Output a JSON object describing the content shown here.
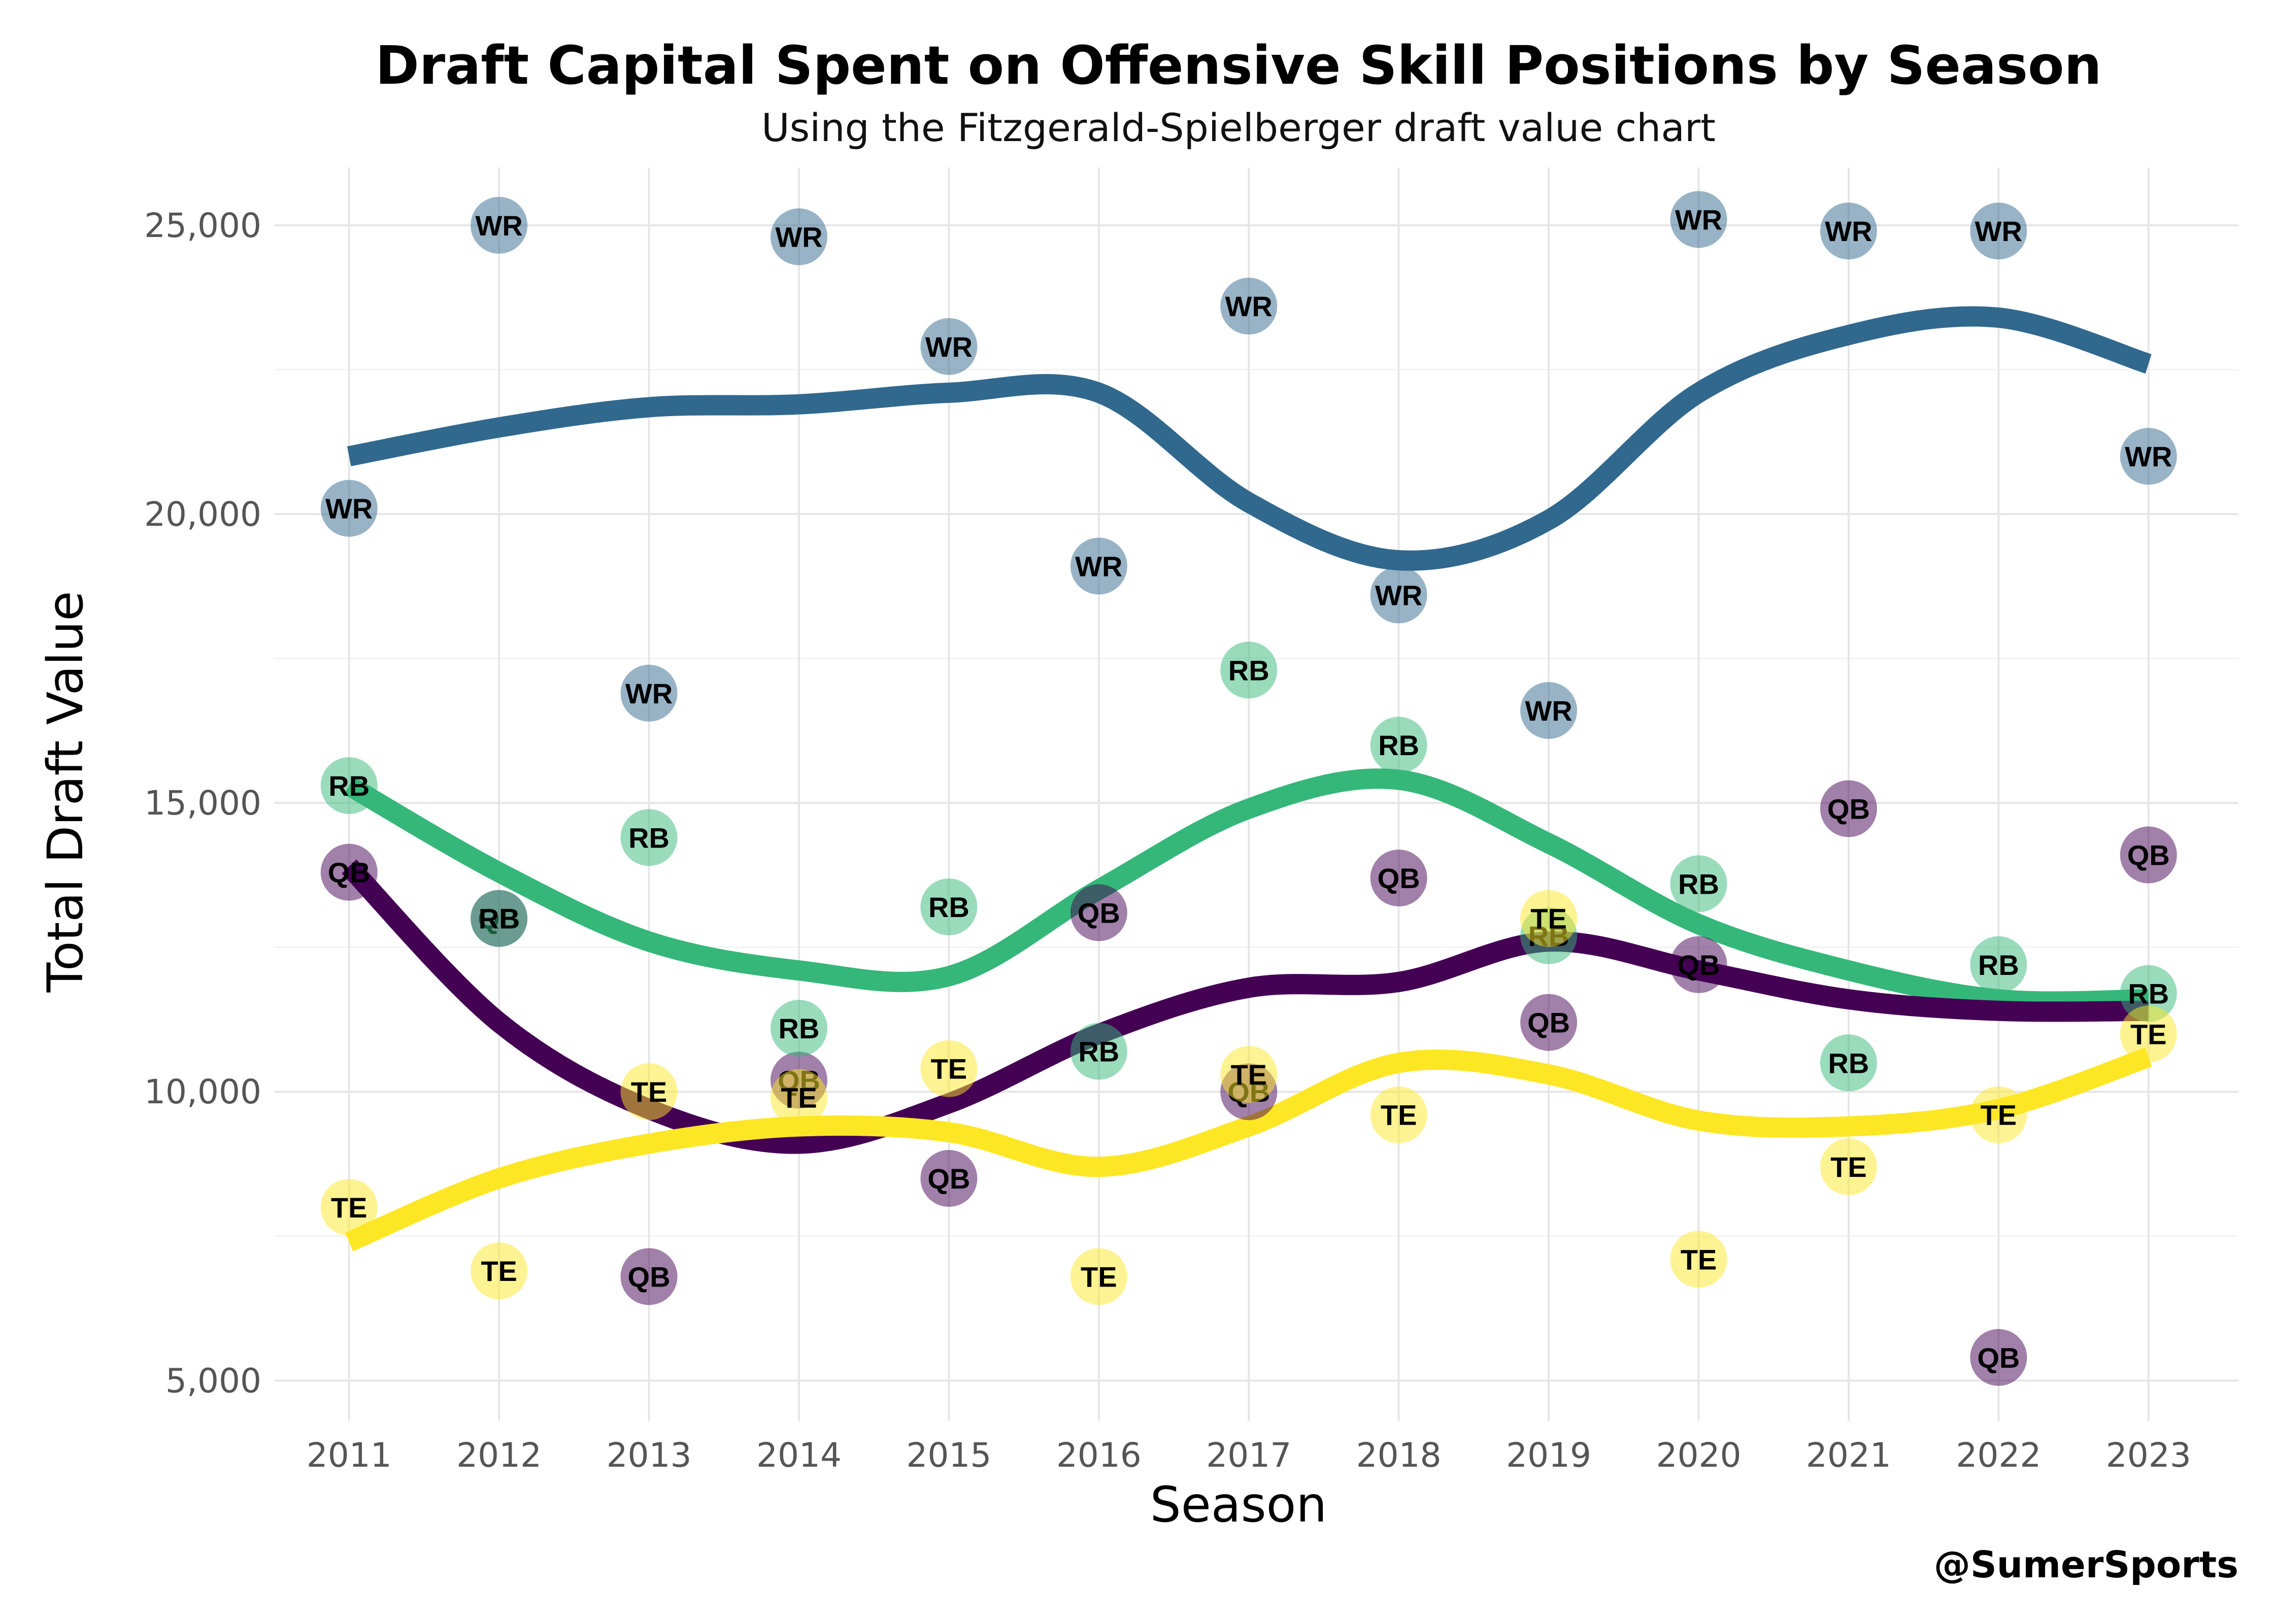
{
  "chart_data": {
    "type": "scatter",
    "title": "Draft Capital Spent on Offensive Skill Positions by Season",
    "subtitle": "Using the Fitzgerald-Spielberger draft value chart",
    "xlabel": "Season",
    "ylabel": "Total Draft Value",
    "caption": "@SumerSports",
    "x": [
      2011,
      2012,
      2013,
      2014,
      2015,
      2016,
      2017,
      2018,
      2019,
      2020,
      2021,
      2022,
      2023
    ],
    "x_tick_labels": [
      "2011",
      "2012",
      "2013",
      "2014",
      "2015",
      "2016",
      "2017",
      "2018",
      "2019",
      "2020",
      "2021",
      "2022",
      "2023"
    ],
    "y_ticks": [
      5000,
      10000,
      15000,
      20000,
      25000
    ],
    "y_tick_labels": [
      "5,000",
      "10,000",
      "15,000",
      "20,000",
      "25,000"
    ],
    "ylim": [
      4300,
      26000
    ],
    "xlim": [
      2010.5,
      2023.6
    ],
    "grid": true,
    "legend": "none",
    "series": [
      {
        "name": "QB",
        "color": "#440154",
        "values": [
          13800,
          13000,
          6800,
          10200,
          8500,
          13100,
          10000,
          13700,
          11200,
          12200,
          14900,
          5400,
          14100
        ],
        "trend": [
          13900,
          11200,
          9700,
          9100,
          9800,
          11000,
          11800,
          11900,
          12600,
          12100,
          11600,
          11400,
          11400
        ]
      },
      {
        "name": "RB",
        "color": "#35B779",
        "values": [
          15300,
          13000,
          14400,
          11100,
          13200,
          10700,
          17300,
          16000,
          12700,
          13600,
          10500,
          12200,
          11700
        ],
        "trend": [
          15300,
          13800,
          12600,
          12100,
          12000,
          13500,
          14900,
          15400,
          14300,
          12900,
          12100,
          11600,
          11600
        ]
      },
      {
        "name": "TE",
        "color": "#FDE725",
        "values": [
          8000,
          6900,
          10000,
          9900,
          10400,
          6800,
          10300,
          9600,
          13000,
          7100,
          8700,
          9600,
          11000
        ],
        "trend": [
          7400,
          8500,
          9100,
          9400,
          9300,
          8700,
          9400,
          10500,
          10300,
          9500,
          9400,
          9700,
          10600
        ]
      },
      {
        "name": "WR",
        "color": "#31688E",
        "values": [
          20100,
          25000,
          16900,
          24800,
          22900,
          19100,
          23600,
          18600,
          16600,
          25100,
          24900,
          24900,
          21000
        ],
        "trend": [
          21000,
          21500,
          21850,
          21900,
          22100,
          22100,
          20200,
          19200,
          19900,
          22100,
          23100,
          23400,
          22600
        ]
      }
    ]
  }
}
